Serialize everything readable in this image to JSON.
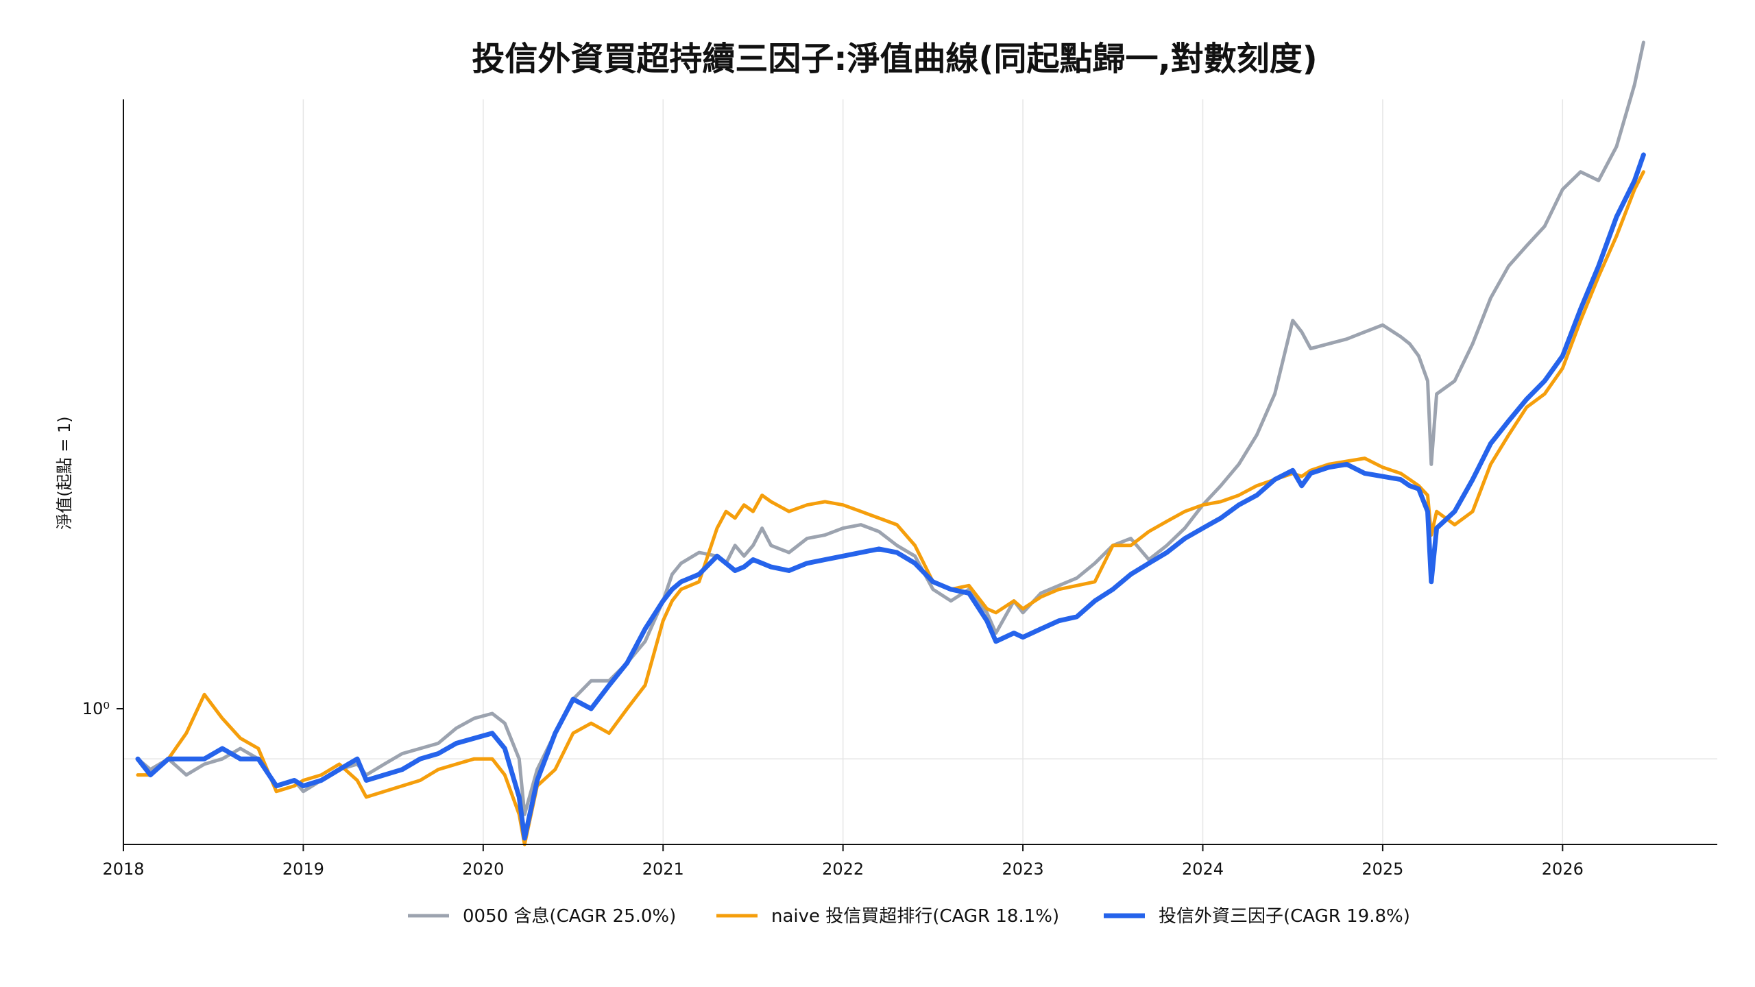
{
  "chart_data": {
    "type": "line",
    "title": "投信外資買超持續三因子:淨值曲線(同起點歸一,對數刻度)",
    "xlabel": "",
    "ylabel": "淨值(起點 = 1)",
    "yscale": "log",
    "xlim": [
      2018.0,
      2026.86
    ],
    "ylim": [
      0.85,
      3.5
    ],
    "x_ticks": [
      "2018",
      "2019",
      "2020",
      "2021",
      "2022",
      "2023",
      "2024",
      "2025",
      "2026"
    ],
    "y_tick_label": "10⁰",
    "grid": true,
    "legend_position": "bottom-center",
    "x": [
      2018.08,
      2018.15,
      2018.25,
      2018.35,
      2018.45,
      2018.55,
      2018.65,
      2018.75,
      2018.85,
      2018.95,
      2019.0,
      2019.1,
      2019.2,
      2019.3,
      2019.35,
      2019.45,
      2019.55,
      2019.65,
      2019.75,
      2019.85,
      2019.95,
      2020.05,
      2020.12,
      2020.2,
      2020.23,
      2020.3,
      2020.4,
      2020.5,
      2020.6,
      2020.7,
      2020.8,
      2020.9,
      2021.0,
      2021.05,
      2021.1,
      2021.2,
      2021.3,
      2021.35,
      2021.4,
      2021.45,
      2021.5,
      2021.55,
      2021.6,
      2021.7,
      2021.8,
      2021.9,
      2022.0,
      2022.1,
      2022.2,
      2022.3,
      2022.4,
      2022.5,
      2022.6,
      2022.7,
      2022.8,
      2022.85,
      2022.95,
      2023.0,
      2023.1,
      2023.2,
      2023.3,
      2023.4,
      2023.5,
      2023.6,
      2023.7,
      2023.8,
      2023.9,
      2024.0,
      2024.1,
      2024.2,
      2024.3,
      2024.4,
      2024.5,
      2024.55,
      2024.6,
      2024.7,
      2024.8,
      2024.9,
      2025.0,
      2025.1,
      2025.15,
      2025.2,
      2025.25,
      2025.27,
      2025.3,
      2025.4,
      2025.5,
      2025.6,
      2025.7,
      2025.8,
      2025.9,
      2026.0,
      2026.1,
      2026.2,
      2026.3,
      2026.4,
      2026.45
    ],
    "series": [
      {
        "name": "0050 含息(CAGR 25.0%)",
        "color": "#9ca3af",
        "values": [
          1.0,
          0.98,
          1.0,
          0.97,
          0.99,
          1.0,
          1.02,
          1.0,
          0.95,
          0.96,
          0.94,
          0.96,
          0.98,
          0.99,
          0.97,
          0.99,
          1.01,
          1.02,
          1.03,
          1.06,
          1.08,
          1.09,
          1.07,
          1.0,
          0.9,
          0.98,
          1.05,
          1.12,
          1.16,
          1.16,
          1.2,
          1.25,
          1.35,
          1.42,
          1.45,
          1.48,
          1.47,
          1.45,
          1.5,
          1.47,
          1.5,
          1.55,
          1.5,
          1.48,
          1.52,
          1.53,
          1.55,
          1.56,
          1.54,
          1.5,
          1.47,
          1.38,
          1.35,
          1.38,
          1.32,
          1.27,
          1.35,
          1.32,
          1.37,
          1.39,
          1.41,
          1.45,
          1.5,
          1.52,
          1.46,
          1.5,
          1.55,
          1.62,
          1.68,
          1.75,
          1.85,
          2.0,
          2.3,
          2.25,
          2.18,
          2.2,
          2.22,
          2.25,
          2.28,
          2.23,
          2.2,
          2.15,
          2.05,
          1.75,
          2.0,
          2.05,
          2.2,
          2.4,
          2.55,
          2.65,
          2.75,
          2.95,
          3.05,
          3.0,
          3.2,
          3.6,
          3.9
        ]
      },
      {
        "name": "naive 投信買超排行(CAGR 18.1%)",
        "color": "#f59e0b",
        "values": [
          0.97,
          0.97,
          1.0,
          1.05,
          1.13,
          1.08,
          1.04,
          1.02,
          0.94,
          0.95,
          0.96,
          0.97,
          0.99,
          0.96,
          0.93,
          0.94,
          0.95,
          0.96,
          0.98,
          0.99,
          1.0,
          1.0,
          0.97,
          0.9,
          0.85,
          0.95,
          0.98,
          1.05,
          1.07,
          1.05,
          1.1,
          1.15,
          1.3,
          1.35,
          1.38,
          1.4,
          1.55,
          1.6,
          1.58,
          1.62,
          1.6,
          1.65,
          1.63,
          1.6,
          1.62,
          1.63,
          1.62,
          1.6,
          1.58,
          1.56,
          1.5,
          1.4,
          1.38,
          1.39,
          1.33,
          1.32,
          1.35,
          1.33,
          1.36,
          1.38,
          1.39,
          1.4,
          1.5,
          1.5,
          1.54,
          1.57,
          1.6,
          1.62,
          1.63,
          1.65,
          1.68,
          1.7,
          1.72,
          1.71,
          1.73,
          1.75,
          1.76,
          1.77,
          1.74,
          1.72,
          1.7,
          1.68,
          1.65,
          1.53,
          1.6,
          1.56,
          1.6,
          1.75,
          1.85,
          1.95,
          2.0,
          2.1,
          2.3,
          2.5,
          2.7,
          2.95,
          3.05
        ]
      },
      {
        "name": "投信外資三因子(CAGR 19.8%)",
        "color": "#2563eb",
        "values": [
          1.0,
          0.97,
          1.0,
          1.0,
          1.0,
          1.02,
          1.0,
          1.0,
          0.95,
          0.96,
          0.95,
          0.96,
          0.98,
          1.0,
          0.96,
          0.97,
          0.98,
          1.0,
          1.01,
          1.03,
          1.04,
          1.05,
          1.02,
          0.93,
          0.86,
          0.96,
          1.05,
          1.12,
          1.1,
          1.15,
          1.2,
          1.28,
          1.35,
          1.38,
          1.4,
          1.42,
          1.47,
          1.45,
          1.43,
          1.44,
          1.46,
          1.45,
          1.44,
          1.43,
          1.45,
          1.46,
          1.47,
          1.48,
          1.49,
          1.48,
          1.45,
          1.4,
          1.38,
          1.37,
          1.3,
          1.25,
          1.27,
          1.26,
          1.28,
          1.3,
          1.31,
          1.35,
          1.38,
          1.42,
          1.45,
          1.48,
          1.52,
          1.55,
          1.58,
          1.62,
          1.65,
          1.7,
          1.73,
          1.68,
          1.72,
          1.74,
          1.75,
          1.72,
          1.71,
          1.7,
          1.68,
          1.67,
          1.6,
          1.4,
          1.55,
          1.6,
          1.7,
          1.82,
          1.9,
          1.98,
          2.05,
          2.15,
          2.35,
          2.55,
          2.8,
          3.0,
          3.15
        ]
      }
    ]
  },
  "colors": {
    "axis": "#111111",
    "grid": "#e6e6e6"
  }
}
